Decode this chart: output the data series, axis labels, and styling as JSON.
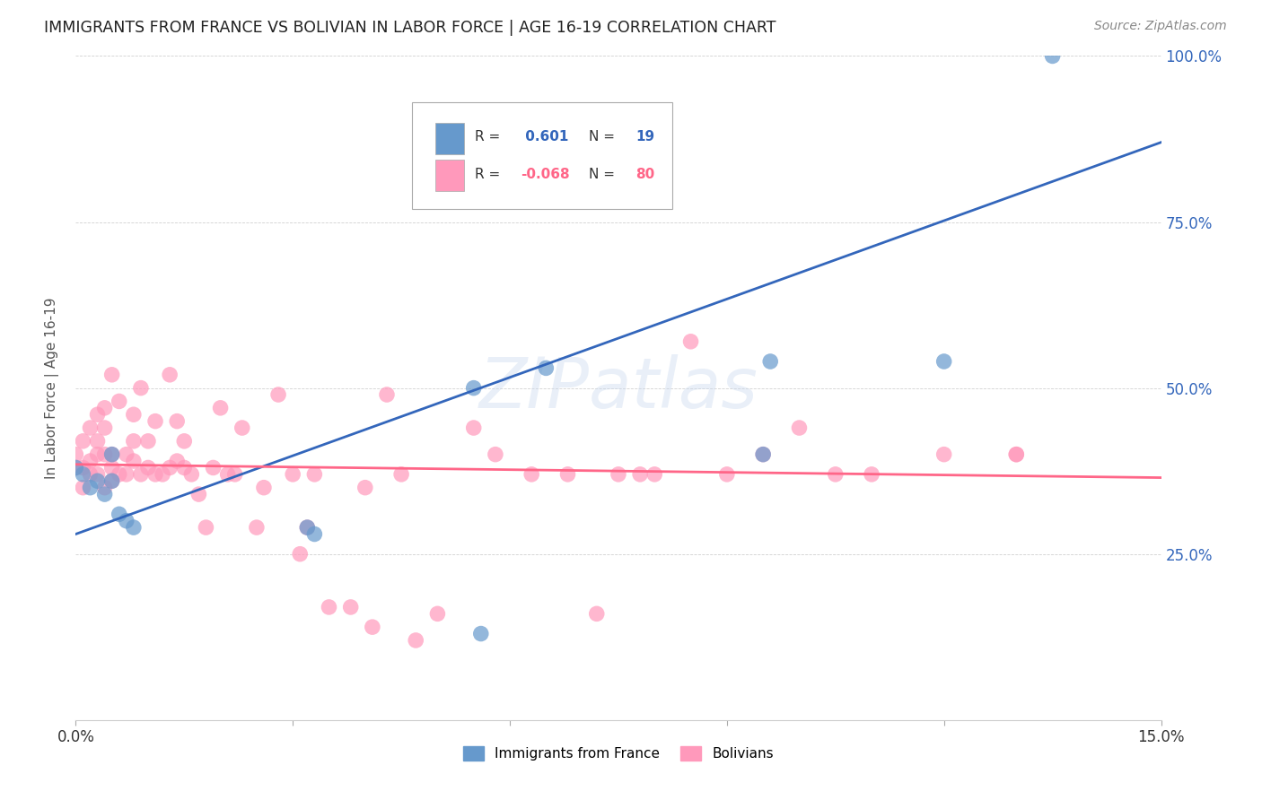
{
  "title": "IMMIGRANTS FROM FRANCE VS BOLIVIAN IN LABOR FORCE | AGE 16-19 CORRELATION CHART",
  "source": "Source: ZipAtlas.com",
  "ylabel": "In Labor Force | Age 16-19",
  "xlim": [
    0.0,
    0.15
  ],
  "ylim": [
    0.0,
    1.0
  ],
  "watermark": "ZIPatlas",
  "france_color": "#6699CC",
  "bolivia_color": "#FF99BB",
  "france_line_color": "#3366BB",
  "bolivia_line_color": "#FF6688",
  "france_R": 0.601,
  "france_N": 19,
  "bolivia_R": -0.068,
  "bolivia_N": 80,
  "france_line_x0": 0.0,
  "france_line_y0": 0.28,
  "france_line_x1": 0.15,
  "france_line_y1": 0.87,
  "bolivia_line_x0": 0.0,
  "bolivia_line_y0": 0.385,
  "bolivia_line_x1": 0.15,
  "bolivia_line_y1": 0.365,
  "france_points_x": [
    0.0,
    0.001,
    0.002,
    0.003,
    0.004,
    0.005,
    0.005,
    0.006,
    0.007,
    0.008,
    0.032,
    0.033,
    0.055,
    0.056,
    0.065,
    0.095,
    0.096,
    0.12,
    0.135
  ],
  "france_points_y": [
    0.38,
    0.37,
    0.35,
    0.36,
    0.34,
    0.36,
    0.4,
    0.31,
    0.3,
    0.29,
    0.29,
    0.28,
    0.5,
    0.13,
    0.53,
    0.4,
    0.54,
    0.54,
    1.0
  ],
  "bolivia_points_x": [
    0.0,
    0.0,
    0.001,
    0.001,
    0.001,
    0.002,
    0.002,
    0.002,
    0.003,
    0.003,
    0.003,
    0.003,
    0.004,
    0.004,
    0.004,
    0.004,
    0.005,
    0.005,
    0.005,
    0.005,
    0.006,
    0.006,
    0.007,
    0.007,
    0.008,
    0.008,
    0.008,
    0.009,
    0.009,
    0.01,
    0.01,
    0.011,
    0.011,
    0.012,
    0.013,
    0.013,
    0.014,
    0.014,
    0.015,
    0.015,
    0.016,
    0.017,
    0.018,
    0.019,
    0.02,
    0.021,
    0.022,
    0.023,
    0.025,
    0.026,
    0.028,
    0.03,
    0.031,
    0.032,
    0.033,
    0.035,
    0.038,
    0.04,
    0.041,
    0.043,
    0.045,
    0.047,
    0.05,
    0.055,
    0.058,
    0.063,
    0.068,
    0.072,
    0.075,
    0.078,
    0.08,
    0.085,
    0.09,
    0.095,
    0.1,
    0.105,
    0.11,
    0.12,
    0.13,
    0.13
  ],
  "bolivia_points_y": [
    0.38,
    0.4,
    0.35,
    0.38,
    0.42,
    0.37,
    0.39,
    0.44,
    0.37,
    0.4,
    0.42,
    0.46,
    0.35,
    0.4,
    0.44,
    0.47,
    0.36,
    0.38,
    0.4,
    0.52,
    0.37,
    0.48,
    0.37,
    0.4,
    0.39,
    0.42,
    0.46,
    0.37,
    0.5,
    0.38,
    0.42,
    0.37,
    0.45,
    0.37,
    0.38,
    0.52,
    0.39,
    0.45,
    0.38,
    0.42,
    0.37,
    0.34,
    0.29,
    0.38,
    0.47,
    0.37,
    0.37,
    0.44,
    0.29,
    0.35,
    0.49,
    0.37,
    0.25,
    0.29,
    0.37,
    0.17,
    0.17,
    0.35,
    0.14,
    0.49,
    0.37,
    0.12,
    0.16,
    0.44,
    0.4,
    0.37,
    0.37,
    0.16,
    0.37,
    0.37,
    0.37,
    0.57,
    0.37,
    0.4,
    0.44,
    0.37,
    0.37,
    0.4,
    0.4,
    0.4
  ]
}
